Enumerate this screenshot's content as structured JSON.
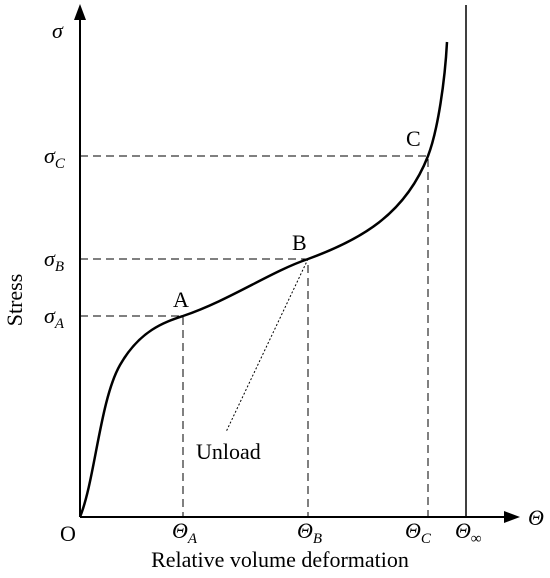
{
  "y_axis": {
    "symbol": "σ",
    "title": "Stress"
  },
  "x_axis": {
    "symbol": "Θ",
    "title": "Relative volume deformation"
  },
  "origin": "O",
  "y_ticks": [
    {
      "symbol": "σ",
      "sub": "A"
    },
    {
      "symbol": "σ",
      "sub": "B"
    },
    {
      "symbol": "σ",
      "sub": "C"
    }
  ],
  "x_ticks": [
    {
      "symbol": "Θ",
      "sub": "A"
    },
    {
      "symbol": "Θ",
      "sub": "B"
    },
    {
      "symbol": "Θ",
      "sub": "C"
    },
    {
      "symbol": "Θ",
      "sub": "∞"
    }
  ],
  "points": [
    "A",
    "B",
    "C"
  ],
  "annotation": "Unload"
}
